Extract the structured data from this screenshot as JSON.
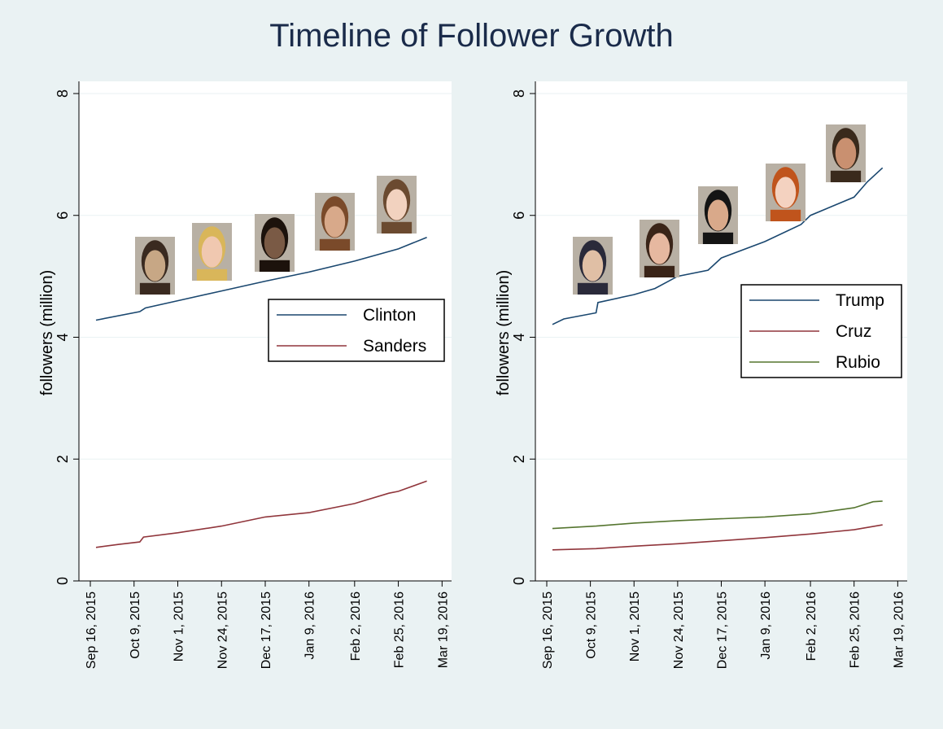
{
  "title": "Timeline of Follower Growth",
  "chart_data": [
    {
      "type": "line",
      "ylabel": "followers (million)",
      "xlabel": "",
      "ylim": [
        0,
        8.2
      ],
      "yticks": [
        0,
        2,
        4,
        6,
        8
      ],
      "xlim": [
        "2015-09-10",
        "2016-03-24"
      ],
      "xticks": [
        "2015-09-16",
        "2015-10-09",
        "2015-11-01",
        "2015-11-24",
        "2015-12-17",
        "2016-01-09",
        "2016-02-02",
        "2016-02-25",
        "2016-03-19"
      ],
      "xtick_labels": [
        "Sep 16, 2015",
        "Oct 9, 2015",
        "Nov 1, 2015",
        "Nov 24, 2015",
        "Dec 17, 2015",
        "Jan 9, 2016",
        "Feb 2, 2016",
        "Feb 25, 2016",
        "Mar 19, 2016"
      ],
      "grid": "horizontal",
      "legend_position": "right",
      "series": [
        {
          "name": "Clinton",
          "color": "#1a476f",
          "points": [
            [
              "2015-09-19",
              4.28
            ],
            [
              "2015-10-12",
              4.42
            ],
            [
              "2015-10-15",
              4.48
            ],
            [
              "2015-11-01",
              4.6
            ],
            [
              "2015-11-24",
              4.76
            ],
            [
              "2015-12-17",
              4.92
            ],
            [
              "2016-01-09",
              5.07
            ],
            [
              "2016-02-02",
              5.25
            ],
            [
              "2016-02-25",
              5.45
            ],
            [
              "2016-03-11",
              5.64
            ]
          ]
        },
        {
          "name": "Sanders",
          "color": "#90353b",
          "points": [
            [
              "2015-09-19",
              0.55
            ],
            [
              "2015-10-01",
              0.6
            ],
            [
              "2015-10-12",
              0.64
            ],
            [
              "2015-10-14",
              0.72
            ],
            [
              "2015-11-01",
              0.79
            ],
            [
              "2015-11-24",
              0.9
            ],
            [
              "2015-12-17",
              1.05
            ],
            [
              "2016-01-09",
              1.12
            ],
            [
              "2016-02-02",
              1.27
            ],
            [
              "2016-02-20",
              1.44
            ],
            [
              "2016-02-25",
              1.47
            ],
            [
              "2016-03-11",
              1.64
            ]
          ]
        }
      ],
      "avatar_icons": [
        "avatar-teen-boy-icon",
        "avatar-blonde-woman-icon",
        "avatar-young-man-icon",
        "avatar-bearded-man-icon",
        "avatar-woman-glasses-icon"
      ]
    },
    {
      "type": "line",
      "ylabel": "followers (million)",
      "xlabel": "",
      "ylim": [
        0,
        8.2
      ],
      "yticks": [
        0,
        2,
        4,
        6,
        8
      ],
      "xlim": [
        "2015-09-10",
        "2016-03-24"
      ],
      "xticks": [
        "2015-09-16",
        "2015-10-09",
        "2015-11-01",
        "2015-11-24",
        "2015-12-17",
        "2016-01-09",
        "2016-02-02",
        "2016-02-25",
        "2016-03-19"
      ],
      "xtick_labels": [
        "Sep 16, 2015",
        "Oct 9, 2015",
        "Nov 1, 2015",
        "Nov 24, 2015",
        "Dec 17, 2015",
        "Jan 9, 2016",
        "Feb 2, 2016",
        "Feb 25, 2016",
        "Mar 19, 2016"
      ],
      "grid": "horizontal",
      "legend_position": "right",
      "series": [
        {
          "name": "Trump",
          "color": "#1a476f",
          "points": [
            [
              "2015-09-19",
              4.21
            ],
            [
              "2015-09-25",
              4.3
            ],
            [
              "2015-10-12",
              4.4
            ],
            [
              "2015-10-13",
              4.57
            ],
            [
              "2015-11-01",
              4.7
            ],
            [
              "2015-11-12",
              4.8
            ],
            [
              "2015-11-24",
              5.0
            ],
            [
              "2015-12-10",
              5.1
            ],
            [
              "2015-12-17",
              5.3
            ],
            [
              "2016-01-09",
              5.57
            ],
            [
              "2016-01-28",
              5.85
            ],
            [
              "2016-02-02",
              6.0
            ],
            [
              "2016-02-25",
              6.3
            ],
            [
              "2016-03-03",
              6.55
            ],
            [
              "2016-03-11",
              6.78
            ]
          ]
        },
        {
          "name": "Cruz",
          "color": "#90353b",
          "points": [
            [
              "2015-09-19",
              0.51
            ],
            [
              "2015-10-12",
              0.53
            ],
            [
              "2015-11-01",
              0.57
            ],
            [
              "2015-11-24",
              0.61
            ],
            [
              "2015-12-17",
              0.66
            ],
            [
              "2016-01-09",
              0.71
            ],
            [
              "2016-02-02",
              0.77
            ],
            [
              "2016-02-25",
              0.84
            ],
            [
              "2016-03-11",
              0.92
            ]
          ]
        },
        {
          "name": "Rubio",
          "color": "#55752f",
          "points": [
            [
              "2015-09-19",
              0.86
            ],
            [
              "2015-10-12",
              0.9
            ],
            [
              "2015-11-01",
              0.95
            ],
            [
              "2015-11-24",
              0.99
            ],
            [
              "2015-12-17",
              1.02
            ],
            [
              "2016-01-09",
              1.05
            ],
            [
              "2016-02-02",
              1.1
            ],
            [
              "2016-02-25",
              1.2
            ],
            [
              "2016-03-06",
              1.3
            ],
            [
              "2016-03-11",
              1.31
            ]
          ]
        }
      ],
      "avatar_icons": [
        "avatar-bald-man-suit-icon",
        "avatar-dark-hair-woman-icon",
        "avatar-man-suit-icon",
        "avatar-red-hair-woman-glasses-icon",
        "avatar-man-portrait-icon"
      ]
    }
  ]
}
